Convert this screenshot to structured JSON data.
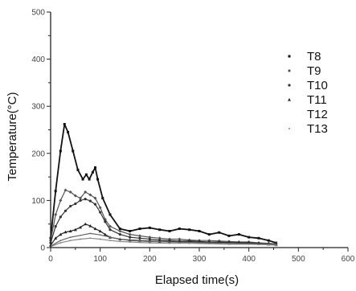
{
  "chart_data": {
    "type": "line",
    "xlabel": "Elapsed time(s)",
    "ylabel": "Temperature(°C)",
    "xlim": [
      0,
      600
    ],
    "ylim": [
      0,
      500
    ],
    "xticks": [
      0,
      100,
      200,
      300,
      400,
      500,
      600
    ],
    "yticks": [
      0,
      100,
      200,
      300,
      400,
      500
    ],
    "grid": false,
    "legend_position": "right",
    "series": [
      {
        "name": "T8",
        "color": "#111111",
        "marker": "square",
        "x": [
          0,
          10,
          20,
          28,
          35,
          45,
          55,
          65,
          72,
          78,
          85,
          90,
          95,
          105,
          120,
          140,
          160,
          180,
          200,
          220,
          240,
          260,
          280,
          300,
          320,
          340,
          360,
          380,
          400,
          420,
          440,
          455
        ],
        "y": [
          20,
          120,
          205,
          262,
          245,
          205,
          165,
          145,
          155,
          145,
          160,
          170,
          145,
          105,
          70,
          40,
          35,
          40,
          42,
          38,
          35,
          40,
          38,
          35,
          28,
          32,
          25,
          28,
          22,
          20,
          15,
          10
        ]
      },
      {
        "name": "T9",
        "color": "#555555",
        "marker": "diamond",
        "x": [
          0,
          10,
          20,
          30,
          40,
          50,
          60,
          70,
          80,
          90,
          100,
          110,
          120,
          140,
          160,
          180,
          200,
          220,
          240,
          260,
          280,
          300,
          320,
          340,
          360,
          380,
          400,
          420,
          440,
          455
        ],
        "y": [
          15,
          70,
          100,
          122,
          118,
          110,
          105,
          118,
          112,
          105,
          85,
          60,
          45,
          35,
          28,
          25,
          22,
          20,
          18,
          18,
          16,
          15,
          15,
          14,
          13,
          12,
          12,
          10,
          9,
          8
        ]
      },
      {
        "name": "T10",
        "color": "#333333",
        "marker": "circle",
        "x": [
          0,
          10,
          20,
          30,
          40,
          50,
          60,
          70,
          80,
          90,
          100,
          110,
          120,
          140,
          160,
          180,
          200,
          220,
          240,
          260,
          280,
          300,
          320,
          340,
          360,
          380,
          400,
          420,
          440,
          455
        ],
        "y": [
          10,
          45,
          65,
          78,
          88,
          93,
          100,
          103,
          99,
          92,
          75,
          55,
          38,
          28,
          22,
          20,
          18,
          16,
          15,
          14,
          14,
          13,
          12,
          12,
          11,
          10,
          10,
          9,
          8,
          7
        ]
      },
      {
        "name": "T11",
        "color": "#222222",
        "marker": "triangle",
        "x": [
          0,
          10,
          20,
          30,
          40,
          50,
          60,
          70,
          80,
          90,
          100,
          110,
          120,
          140,
          160,
          180,
          200,
          220,
          240,
          260,
          280,
          300,
          320,
          340,
          360,
          380,
          400,
          420,
          440,
          455
        ],
        "y": [
          5,
          20,
          28,
          33,
          35,
          38,
          43,
          50,
          46,
          40,
          35,
          28,
          22,
          18,
          16,
          15,
          14,
          13,
          13,
          12,
          12,
          11,
          11,
          10,
          10,
          10,
          9,
          8,
          7,
          6
        ]
      },
      {
        "name": "T12",
        "color": "#666666",
        "marker": "none",
        "x": [
          0,
          20,
          40,
          60,
          80,
          100,
          120,
          140,
          160,
          180,
          200,
          240,
          280,
          320,
          360,
          400,
          440,
          455
        ],
        "y": [
          3,
          15,
          22,
          26,
          30,
          27,
          22,
          18,
          15,
          14,
          13,
          12,
          11,
          10,
          9,
          8,
          7,
          6
        ]
      },
      {
        "name": "T13",
        "color": "#888888",
        "marker": "dot",
        "x": [
          0,
          20,
          40,
          60,
          80,
          100,
          120,
          140,
          160,
          180,
          200,
          240,
          280,
          320,
          360,
          400,
          440,
          455
        ],
        "y": [
          2,
          10,
          15,
          18,
          20,
          18,
          15,
          13,
          12,
          11,
          10,
          9,
          9,
          8,
          7,
          7,
          6,
          5
        ]
      }
    ]
  }
}
